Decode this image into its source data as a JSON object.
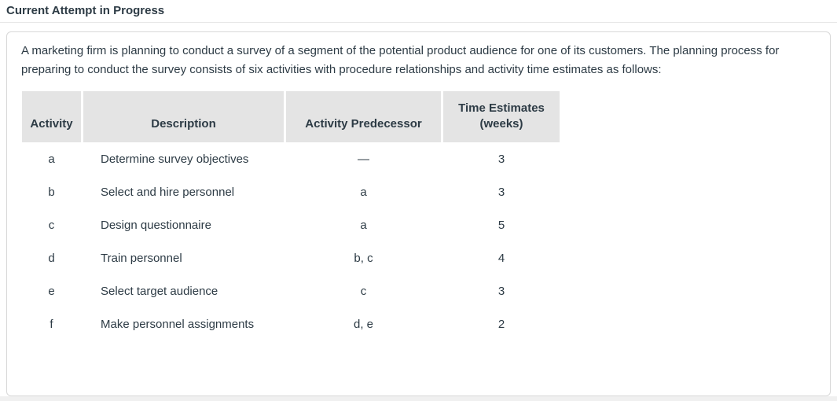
{
  "page": {
    "title": "Current Attempt in Progress"
  },
  "question": {
    "intro": "A marketing firm is planning to conduct a survey of a segment of the potential product audience for one of its customers. The planning process for preparing to conduct the survey consists of six activities with procedure relationships and activity time estimates as follows:"
  },
  "table": {
    "columns": [
      {
        "label": "Activity"
      },
      {
        "label": "Description"
      },
      {
        "label": "Activity Predecessor"
      },
      {
        "label": "Time Estimates",
        "sublabel": "(weeks)"
      }
    ],
    "rows": [
      {
        "activity": "a",
        "description": "Determine survey objectives",
        "predecessor": "—",
        "time": "3"
      },
      {
        "activity": "b",
        "description": "Select and hire personnel",
        "predecessor": "a",
        "time": "3"
      },
      {
        "activity": "c",
        "description": "Design questionnaire",
        "predecessor": "a",
        "time": "5"
      },
      {
        "activity": "d",
        "description": "Train personnel",
        "predecessor": "b, c",
        "time": "4"
      },
      {
        "activity": "e",
        "description": "Select target audience",
        "predecessor": "c",
        "time": "3"
      },
      {
        "activity": "f",
        "description": "Make personnel assignments",
        "predecessor": "d, e",
        "time": "2"
      }
    ]
  },
  "colors": {
    "text": "#2d3b45",
    "table_header_bg": "#e4e4e4",
    "card_border": "#d8d8d8",
    "divider": "#e7e7e7",
    "page_bottom_strip": "#f0f0f0"
  }
}
